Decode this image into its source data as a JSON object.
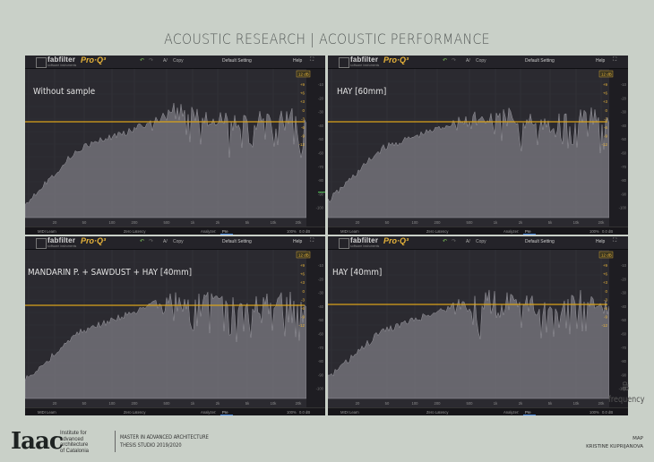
{
  "header": {
    "title": "ACOUSTIC RESEARCH   |   ACOUSTIC PERFORMANCE"
  },
  "plugin": {
    "brand": "fabfilter",
    "brand_sub": "software instruments",
    "product": "Pro·Q³",
    "ab": "A/",
    "copy": "Copy",
    "preset": "Default Setting",
    "help": "Help",
    "midi_learn": "MIDI Learn",
    "latency": "Zero Latency",
    "analyzer": "Analyzer:",
    "analyzer_val": "Pre",
    "zoom": "100%",
    "gain": "0.0 dB",
    "range": "12 dB",
    "freq_ticks": [
      "20",
      "50",
      "100",
      "200",
      "500",
      "1k",
      "2k",
      "5k",
      "10k",
      "20k"
    ],
    "db_scale": [
      "+9",
      "+6",
      "+3",
      "0",
      "-3",
      "-6",
      "-9",
      "-12"
    ],
    "analyzer_scale": [
      "-10",
      "-20",
      "-30",
      "-40",
      "-50",
      "-60",
      "-70",
      "-80",
      "-90",
      "-100"
    ],
    "colors": {
      "accent": "#e8b43a",
      "threshold": "#d9a21b",
      "spectrum": "#7c7b82"
    }
  },
  "panels": [
    {
      "label": "Without sample"
    },
    {
      "label": "HAY [60mm]"
    },
    {
      "label": "MANDARIN P. + SAWDUST + HAY [40mm]"
    },
    {
      "label": "HAY [40mm]"
    }
  ],
  "axes": {
    "y": "dB",
    "x": "frequency"
  },
  "footer": {
    "logo": "Iaac",
    "inst_1": "Institute for",
    "inst_2": "advanced",
    "inst_3": "architecture",
    "inst_4": "of Catalonia",
    "program": "MASTER IN ADVANCED ARCHITECTURE",
    "studio": "THESIS STUDIO 2019/2020",
    "doc_type": "MAP",
    "author": "KRISTINE KUPRIJANOVA"
  }
}
